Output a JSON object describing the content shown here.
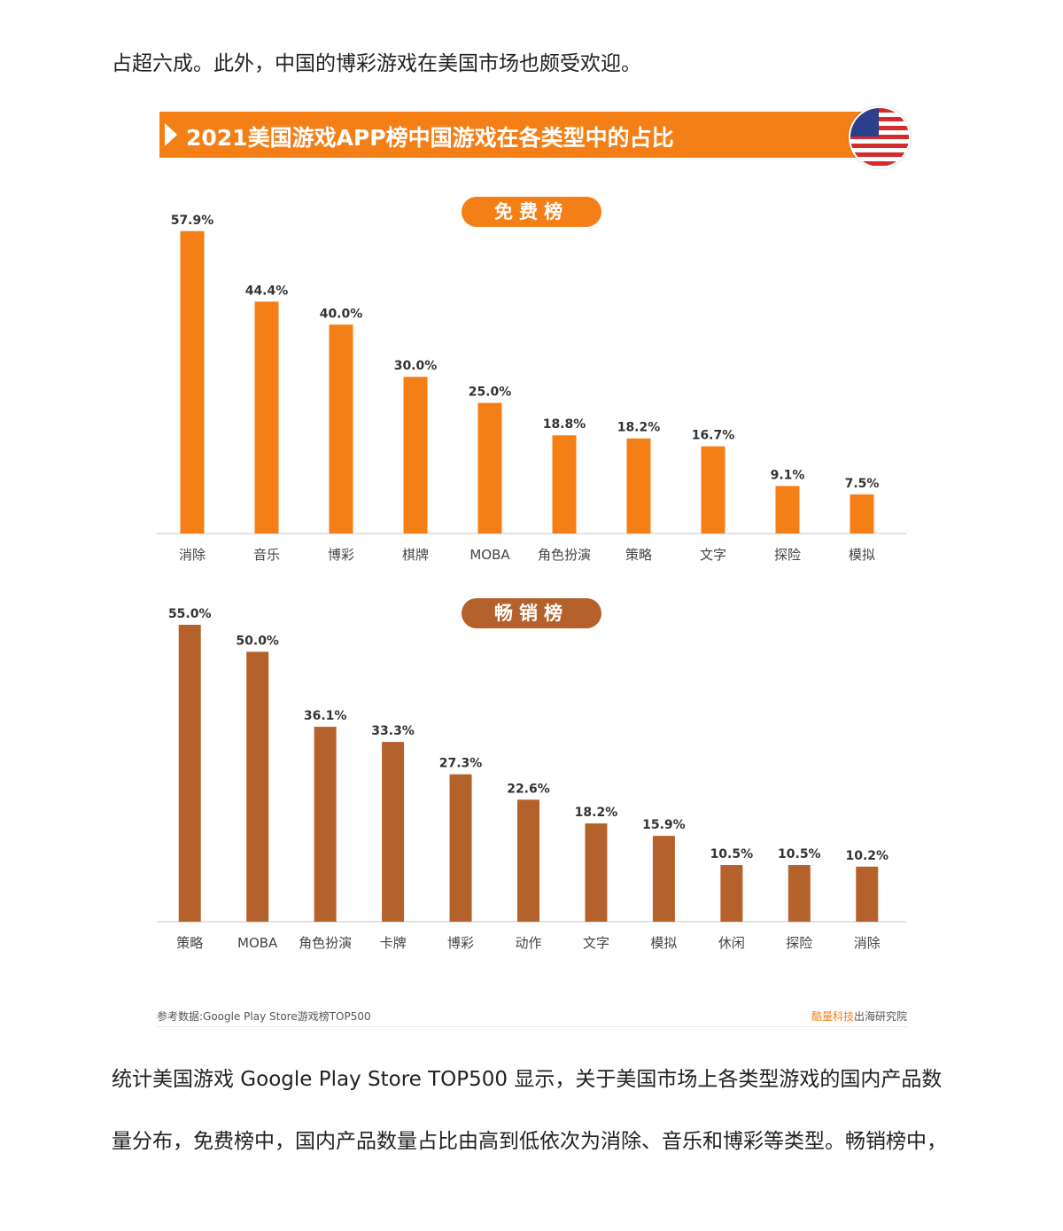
{
  "paragraphs": {
    "p1": "占超六成。此外，中国的博彩游戏在美国市场也颇受欢迎。",
    "p2": "统计美国游戏 Google Play Store TOP500 显示，关于美国市场上各类型游戏的国内产品数",
    "p3": "量分布，免费榜中，国内产品数量占比由高到低依次为消除、音乐和博彩等类型。畅销榜中，"
  },
  "figure": {
    "title": "2021美国游戏APP榜中国游戏在各类型中的占比",
    "flag_icon": "us-flag-icon",
    "footnote": "参考数据:Google Play Store游戏榜TOP500",
    "credit_brand": "酷量科技",
    "credit_rest": "出海研究院",
    "colors": {
      "banner": "#f57f17",
      "free_bar": "#f57f17",
      "gross_bar": "#b5612b"
    }
  },
  "chart_data": [
    {
      "type": "bar",
      "title": "免费榜",
      "categories": [
        "消除",
        "音乐",
        "博彩",
        "棋牌",
        "MOBA",
        "角色扮演",
        "策略",
        "文字",
        "探险",
        "模拟"
      ],
      "values": [
        57.9,
        44.4,
        40.0,
        30.0,
        25.0,
        18.8,
        18.2,
        16.7,
        9.1,
        7.5
      ],
      "labels": [
        "57.9%",
        "44.4%",
        "40.0%",
        "30.0%",
        "25.0%",
        "18.8%",
        "18.2%",
        "16.7%",
        "9.1%",
        "7.5%"
      ],
      "ylim": [
        0,
        60
      ],
      "grid": false,
      "color": "#f57f17"
    },
    {
      "type": "bar",
      "title": "畅销榜",
      "categories": [
        "策略",
        "MOBA",
        "角色扮演",
        "卡牌",
        "博彩",
        "动作",
        "文字",
        "模拟",
        "休闲",
        "探险",
        "消除"
      ],
      "values": [
        55.0,
        50.0,
        36.1,
        33.3,
        27.3,
        22.6,
        18.2,
        15.9,
        10.5,
        10.5,
        10.2
      ],
      "labels": [
        "55.0%",
        "50.0%",
        "36.1%",
        "33.3%",
        "27.3%",
        "22.6%",
        "18.2%",
        "15.9%",
        "10.5%",
        "10.5%",
        "10.2%"
      ],
      "ylim": [
        0,
        60
      ],
      "grid": false,
      "color": "#b5612b"
    }
  ]
}
